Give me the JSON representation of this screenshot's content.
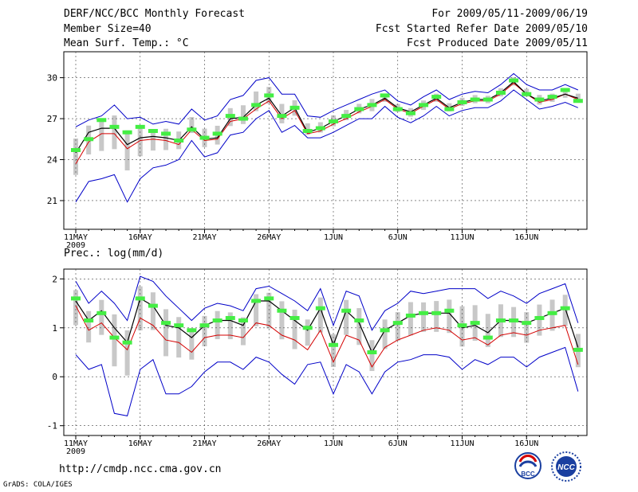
{
  "header": {
    "title": "DERF/NCC/BCC Monthly Forecast",
    "member_size": "Member Size=40",
    "variable1": "Mean Surf. Temp.: °C",
    "period": "For 2009/05/11-2009/06/19",
    "started": "Fcst Started Refer Date 2009/05/10",
    "produced": "Fcst Produced Date 2009/05/11"
  },
  "footer": {
    "url": "http://cmdp.ncc.cma.gov.cn",
    "grads": "GrADS: COLA/IGES",
    "logo_bcc": "BCC",
    "logo_ncc": "NCC"
  },
  "colors": {
    "ensemble_mean": "#000000",
    "red_line": "#d40000",
    "envelope": "#0000c8",
    "box": "#c8c8c8",
    "marker": "#44ee44"
  },
  "chart_data": [
    {
      "type": "line",
      "title": "Mean Surf. Temp.: °C",
      "x_tick_labels": [
        "11MAY",
        "16MAY",
        "21MAY",
        "26MAY",
        "1JUN",
        "6JUN",
        "11JUN",
        "16JUN"
      ],
      "x_tick_sub": "2009",
      "ylim": [
        18.9,
        31.9
      ],
      "yticks": [
        21,
        24,
        27,
        30
      ],
      "days": 40,
      "series": [
        {
          "name": "ensemble-mean",
          "values": [
            24.5,
            26.0,
            26.3,
            26.3,
            25.1,
            25.6,
            25.7,
            25.6,
            25.4,
            26.4,
            25.5,
            25.6,
            27.0,
            27.1,
            28.0,
            28.5,
            27.2,
            27.8,
            26.0,
            26.3,
            26.8,
            27.2,
            27.7,
            28.0,
            28.5,
            27.8,
            27.5,
            28.0,
            28.5,
            27.8,
            28.2,
            28.4,
            28.4,
            28.9,
            29.7,
            28.8,
            28.3,
            28.5,
            28.8,
            28.5
          ]
        },
        {
          "name": "red",
          "values": [
            23.7,
            25.3,
            25.9,
            25.9,
            24.8,
            25.4,
            25.5,
            25.4,
            25.1,
            26.2,
            25.4,
            25.5,
            26.8,
            27.0,
            27.7,
            28.3,
            27.0,
            27.6,
            25.9,
            26.1,
            26.6,
            27.0,
            27.5,
            27.9,
            28.4,
            27.7,
            27.4,
            27.9,
            28.4,
            27.7,
            28.1,
            28.3,
            28.3,
            28.8,
            29.6,
            28.8,
            28.2,
            28.4,
            28.8,
            28.4
          ]
        },
        {
          "name": "upper-envelope",
          "values": [
            26.4,
            26.9,
            27.2,
            28.0,
            27.0,
            27.1,
            26.6,
            26.8,
            26.6,
            27.7,
            26.9,
            27.2,
            28.4,
            28.7,
            29.8,
            30.0,
            28.8,
            28.8,
            27.2,
            27.1,
            27.6,
            28.0,
            28.4,
            28.8,
            29.1,
            28.3,
            28.0,
            28.6,
            29.1,
            28.4,
            28.8,
            29.0,
            28.9,
            29.5,
            30.3,
            29.5,
            29.1,
            29.1,
            29.5,
            29.1
          ]
        },
        {
          "name": "lower-envelope",
          "values": [
            20.9,
            22.4,
            22.6,
            22.9,
            20.9,
            22.6,
            23.4,
            23.6,
            24.0,
            25.4,
            24.2,
            24.5,
            25.8,
            26.0,
            27.0,
            27.6,
            26.0,
            26.5,
            25.6,
            25.6,
            26.0,
            26.5,
            27.0,
            27.0,
            27.9,
            27.1,
            26.7,
            27.2,
            27.9,
            27.2,
            27.6,
            27.8,
            27.8,
            28.3,
            29.1,
            28.4,
            27.7,
            27.9,
            28.2,
            27.8
          ]
        },
        {
          "name": "markers",
          "values": [
            24.7,
            25.5,
            26.9,
            26.4,
            26.0,
            26.4,
            26.1,
            25.9,
            25.4,
            26.2,
            25.6,
            25.9,
            27.2,
            27.0,
            28.0,
            28.7,
            27.2,
            27.8,
            26.1,
            26.3,
            26.8,
            27.2,
            27.7,
            28.0,
            28.7,
            27.7,
            27.4,
            28.0,
            28.6,
            27.7,
            28.2,
            28.4,
            28.4,
            28.9,
            29.8,
            28.8,
            28.4,
            28.6,
            29.1,
            28.3
          ]
        }
      ]
    },
    {
      "type": "line",
      "title": "Prec.: log(mm/d)",
      "x_tick_labels": [
        "11MAY",
        "16MAY",
        "21MAY",
        "26MAY",
        "1JUN",
        "6JUN",
        "11JUN",
        "16JUN"
      ],
      "x_tick_sub": "2009",
      "ylim": [
        -1.2,
        2.2
      ],
      "yticks": [
        -1,
        0,
        1,
        2
      ],
      "days": 40,
      "series": [
        {
          "name": "ensemble-mean",
          "values": [
            1.55,
            1.15,
            1.35,
            1.0,
            0.7,
            1.6,
            1.45,
            1.05,
            1.0,
            0.8,
            1.05,
            1.15,
            1.15,
            1.05,
            1.55,
            1.55,
            1.35,
            1.15,
            0.95,
            1.4,
            0.65,
            1.35,
            1.1,
            0.5,
            0.95,
            1.1,
            1.25,
            1.3,
            1.3,
            1.3,
            1.0,
            1.05,
            0.9,
            1.15,
            1.15,
            1.1,
            1.2,
            1.3,
            1.4,
            0.6
          ]
        },
        {
          "name": "red",
          "values": [
            1.45,
            0.95,
            1.1,
            0.8,
            0.55,
            1.2,
            1.05,
            0.75,
            0.7,
            0.5,
            0.8,
            0.85,
            0.85,
            0.8,
            1.1,
            1.05,
            0.85,
            0.75,
            0.55,
            0.95,
            0.3,
            0.85,
            0.75,
            0.2,
            0.6,
            0.75,
            0.85,
            0.95,
            1.0,
            0.95,
            0.75,
            0.8,
            0.65,
            0.85,
            0.9,
            0.85,
            0.95,
            1.0,
            1.05,
            0.25
          ]
        },
        {
          "name": "upper-envelope",
          "values": [
            1.95,
            1.5,
            1.75,
            1.5,
            1.15,
            2.05,
            1.95,
            1.65,
            1.4,
            1.15,
            1.4,
            1.5,
            1.45,
            1.35,
            1.8,
            1.85,
            1.7,
            1.55,
            1.35,
            1.8,
            1.05,
            1.75,
            1.65,
            0.95,
            1.35,
            1.5,
            1.75,
            1.7,
            1.75,
            1.8,
            1.8,
            1.8,
            1.6,
            1.75,
            1.65,
            1.5,
            1.7,
            1.8,
            1.9,
            1.1
          ]
        },
        {
          "name": "lower-envelope",
          "values": [
            0.45,
            0.15,
            0.25,
            -0.75,
            -0.8,
            0.15,
            0.35,
            -0.35,
            -0.35,
            -0.2,
            0.1,
            0.3,
            0.3,
            0.15,
            0.4,
            0.3,
            0.05,
            -0.15,
            0.25,
            0.3,
            -0.35,
            0.25,
            0.1,
            -0.35,
            0.1,
            0.3,
            0.35,
            0.45,
            0.45,
            0.4,
            0.15,
            0.35,
            0.25,
            0.4,
            0.4,
            0.2,
            0.4,
            0.5,
            0.6,
            -0.3
          ]
        },
        {
          "name": "markers",
          "values": [
            1.6,
            1.15,
            1.3,
            0.8,
            0.7,
            1.6,
            1.45,
            1.1,
            1.05,
            0.95,
            1.05,
            1.15,
            1.2,
            1.15,
            1.55,
            1.6,
            1.35,
            1.2,
            1.0,
            1.4,
            0.65,
            1.35,
            1.15,
            0.5,
            0.95,
            1.1,
            1.25,
            1.3,
            1.3,
            1.35,
            1.05,
            1.1,
            0.8,
            1.15,
            1.15,
            1.1,
            1.2,
            1.3,
            1.4,
            0.55
          ]
        }
      ]
    }
  ]
}
